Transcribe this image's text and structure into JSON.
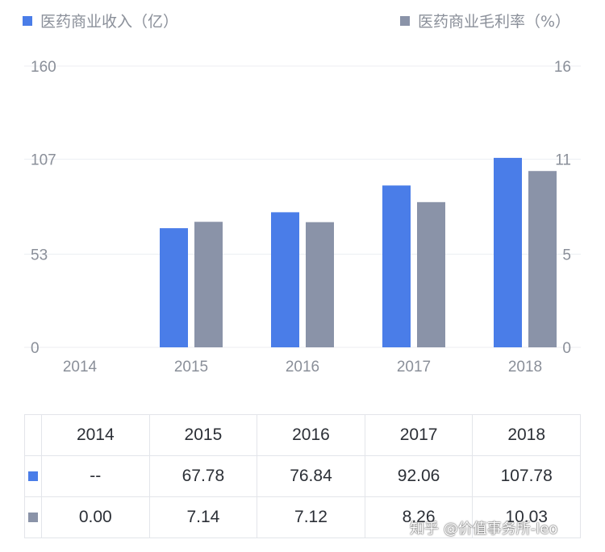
{
  "colors": {
    "series_a": "#4a7de8",
    "series_b": "#8a93a8",
    "grid": "#eceef2"
  },
  "legend": {
    "series_a": "医药商业收入（亿）",
    "series_b": "医药商业毛利率（%）"
  },
  "chart_data": {
    "type": "bar",
    "categories": [
      "2014",
      "2015",
      "2016",
      "2017",
      "2018"
    ],
    "series": [
      {
        "name": "医药商业收入（亿）",
        "axis": "left",
        "values": [
          null,
          67.78,
          76.84,
          92.06,
          107.78
        ]
      },
      {
        "name": "医药商业毛利率（%）",
        "axis": "right",
        "values": [
          0.0,
          7.14,
          7.12,
          8.26,
          10.03
        ]
      }
    ],
    "y_left": {
      "ticks": [
        "0",
        "53",
        "107",
        "160"
      ],
      "range": [
        0,
        160
      ]
    },
    "y_right": {
      "ticks": [
        "0",
        "5",
        "11",
        "16"
      ],
      "range": [
        0,
        16
      ]
    },
    "grid": true,
    "legend_position": "top"
  },
  "table": {
    "header": [
      "2014",
      "2015",
      "2016",
      "2017",
      "2018"
    ],
    "rows": [
      {
        "series": "series_a",
        "cells": [
          "--",
          "67.78",
          "76.84",
          "92.06",
          "107.78"
        ]
      },
      {
        "series": "series_b",
        "cells": [
          "0.00",
          "7.14",
          "7.12",
          "8.26",
          "10.03"
        ]
      }
    ]
  },
  "watermark": "知乎 @价值事务所-leo"
}
